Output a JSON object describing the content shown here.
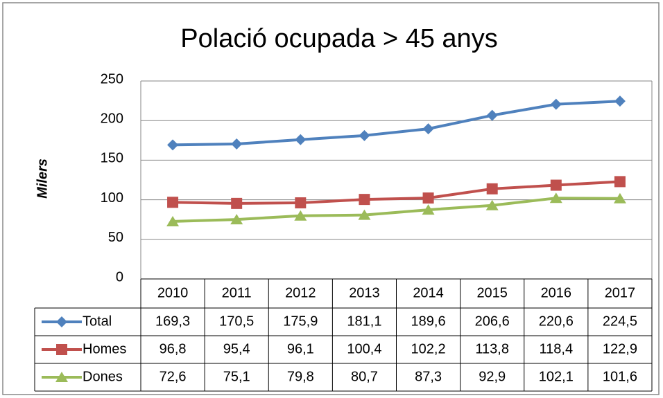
{
  "chart_data": {
    "type": "line",
    "title": "Polació ocupada > 45 anys",
    "y_label": "Milers",
    "categories": [
      "2010",
      "2011",
      "2012",
      "2013",
      "2014",
      "2015",
      "2016",
      "2017"
    ],
    "series": [
      {
        "name": "Total",
        "color": "#4f81bd",
        "marker": "diamond",
        "values": [
          169.3,
          170.5,
          175.9,
          181.1,
          189.6,
          206.6,
          220.6,
          224.5
        ],
        "value_labels": [
          "169,3",
          "170,5",
          "175,9",
          "181,1",
          "189,6",
          "206,6",
          "220,6",
          "224,5"
        ]
      },
      {
        "name": "Homes",
        "color": "#c0504d",
        "marker": "square",
        "values": [
          96.8,
          95.4,
          96.1,
          100.4,
          102.2,
          113.8,
          118.4,
          122.9
        ],
        "value_labels": [
          "96,8",
          "95,4",
          "96,1",
          "100,4",
          "102,2",
          "113,8",
          "118,4",
          "122,9"
        ]
      },
      {
        "name": "Dones",
        "color": "#9bbb59",
        "marker": "triangle",
        "values": [
          72.6,
          75.1,
          79.8,
          80.7,
          87.3,
          92.9,
          102.1,
          101.6
        ],
        "value_labels": [
          "72,6",
          "75,1",
          "79,8",
          "80,7",
          "87,3",
          "92,9",
          "102,1",
          "101,6"
        ]
      }
    ],
    "ylim": [
      0,
      250
    ],
    "yticks": [
      0,
      50,
      100,
      150,
      200,
      250
    ],
    "grid": true
  }
}
